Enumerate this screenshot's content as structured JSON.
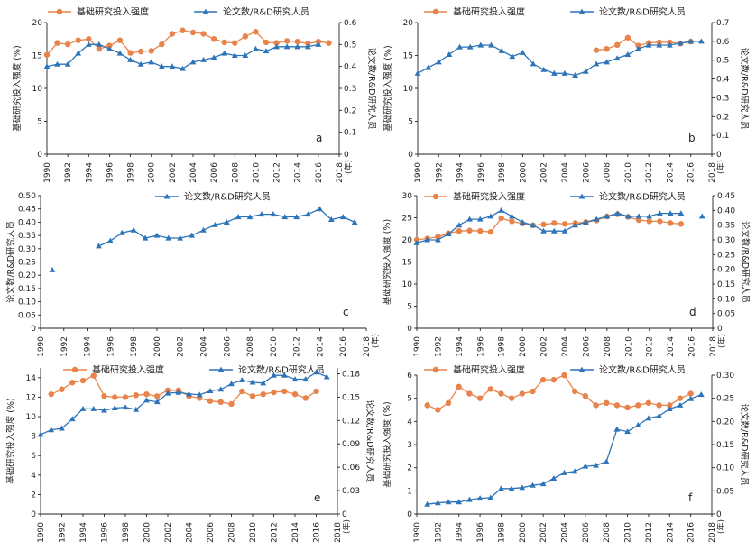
{
  "common": {
    "x_label": "(年)",
    "basic_label": "基础研究投入强度",
    "paper_label": "论文数/R&D研究人员",
    "basic_axis_title": "基础研究投入强度 (%)",
    "paper_axis_title": "论文数/R&D研究人员",
    "colors": {
      "basic": "#E8834A",
      "paper": "#2E74B8"
    },
    "markers": {
      "basic": "circle",
      "paper": "triangle"
    }
  },
  "chart_data": [
    {
      "panel": "a",
      "type": "line",
      "legend": [
        "基础研究投入强度",
        "论文数/R&D研究人员"
      ],
      "x_ticks": [
        1990,
        1992,
        1994,
        1996,
        1998,
        2000,
        2002,
        2004,
        2006,
        2008,
        2010,
        2012,
        2014,
        2016,
        2018
      ],
      "xlim": [
        1990,
        2018
      ],
      "left_axis": {
        "ylim": [
          0,
          20
        ],
        "ticks": [
          "0",
          "5",
          "10",
          "15",
          "20"
        ]
      },
      "right_axis": {
        "ylim": [
          0,
          0.6
        ],
        "ticks": [
          "0",
          "0.1",
          "0.2",
          "0.3",
          "0.4",
          "0.5",
          "0.6"
        ]
      },
      "series": [
        {
          "name": "基础研究投入强度",
          "axis": "left",
          "x": [
            1990,
            1991,
            1992,
            1993,
            1994,
            1995,
            1996,
            1997,
            1998,
            1999,
            2000,
            2001,
            2002,
            2003,
            2004,
            2005,
            2006,
            2007,
            2008,
            2009,
            2010,
            2011,
            2012,
            2013,
            2014,
            2015,
            2016,
            2017
          ],
          "y": [
            15.1,
            16.9,
            16.7,
            17.3,
            17.5,
            16.0,
            16.5,
            17.3,
            15.4,
            15.6,
            15.7,
            16.7,
            18.3,
            18.8,
            18.5,
            18.3,
            17.5,
            17.0,
            16.9,
            17.9,
            18.6,
            17.0,
            16.9,
            17.2,
            17.1,
            16.8,
            17.1,
            16.9
          ]
        },
        {
          "name": "论文数/R&D研究人员",
          "axis": "right",
          "x": [
            1990,
            1991,
            1992,
            1993,
            1994,
            1995,
            1996,
            1997,
            1998,
            1999,
            2000,
            2001,
            2002,
            2003,
            2004,
            2005,
            2006,
            2007,
            2008,
            2009,
            2010,
            2011,
            2012,
            2013,
            2014,
            2015,
            2016
          ],
          "y": [
            0.4,
            0.41,
            0.41,
            0.46,
            0.5,
            0.5,
            0.48,
            0.46,
            0.43,
            0.41,
            0.42,
            0.4,
            0.4,
            0.39,
            0.42,
            0.43,
            0.44,
            0.46,
            0.45,
            0.45,
            0.48,
            0.47,
            0.49,
            0.49,
            0.49,
            0.49,
            0.5
          ]
        }
      ]
    },
    {
      "panel": "b",
      "type": "line",
      "legend": [
        "基础研究投入强度",
        "论文数/R&D研究人员"
      ],
      "x_ticks": [
        1990,
        1992,
        1994,
        1996,
        1998,
        2000,
        2002,
        2004,
        2006,
        2008,
        2010,
        2012,
        2014,
        2016,
        2018
      ],
      "xlim": [
        1990,
        2018
      ],
      "left_axis": {
        "ylim": [
          0,
          20
        ],
        "ticks": [
          "0",
          "5",
          "10",
          "15",
          "20"
        ]
      },
      "right_axis": {
        "ylim": [
          0,
          0.7
        ],
        "ticks": [
          "0",
          "0.1",
          "0.2",
          "0.3",
          "0.4",
          "0.5",
          "0.6",
          "0.7"
        ]
      },
      "series": [
        {
          "name": "基础研究投入强度",
          "axis": "left",
          "x": [
            2007,
            2008,
            2009,
            2010,
            2011,
            2012,
            2013,
            2014,
            2015,
            2016
          ],
          "y": [
            15.8,
            16.0,
            16.6,
            17.7,
            16.5,
            16.9,
            17.0,
            17.0,
            16.8,
            17.1
          ]
        },
        {
          "name": "论文数/R&D研究人员",
          "axis": "right",
          "x": [
            1990,
            1991,
            1992,
            1993,
            1994,
            1995,
            1996,
            1997,
            1998,
            1999,
            2000,
            2001,
            2002,
            2003,
            2004,
            2005,
            2006,
            2007,
            2008,
            2009,
            2010,
            2011,
            2012,
            2013,
            2014,
            2015,
            2016,
            2017
          ],
          "y": [
            0.43,
            0.46,
            0.49,
            0.53,
            0.57,
            0.57,
            0.58,
            0.58,
            0.55,
            0.52,
            0.54,
            0.48,
            0.45,
            0.43,
            0.43,
            0.42,
            0.44,
            0.48,
            0.49,
            0.51,
            0.53,
            0.56,
            0.58,
            0.58,
            0.58,
            0.59,
            0.6,
            0.6
          ]
        }
      ]
    },
    {
      "panel": "c",
      "type": "line",
      "legend": [
        "论文数/R&D研究人员"
      ],
      "x_ticks": [
        1990,
        1992,
        1994,
        1996,
        1998,
        2000,
        2002,
        2004,
        2006,
        2008,
        2010,
        2012,
        2014,
        2016,
        2018
      ],
      "xlim": [
        1990,
        2018
      ],
      "left_axis": {
        "ylim": [
          0,
          0.5
        ],
        "ticks": [
          "0",
          "0.05",
          "0.10",
          "0.15",
          "0.20",
          "0.25",
          "0.30",
          "0.35",
          "0.40",
          "0.45",
          "0.50"
        ]
      },
      "right_axis": null,
      "series": [
        {
          "name": "论文数/R&D研究人员",
          "axis": "left",
          "x": [
            1991,
            1995,
            1996,
            1997,
            1998,
            1999,
            2000,
            2001,
            2002,
            2003,
            2004,
            2005,
            2006,
            2007,
            2008,
            2009,
            2010,
            2011,
            2012,
            2013,
            2014,
            2015,
            2016,
            2017
          ],
          "y": [
            0.22,
            0.31,
            0.33,
            0.36,
            0.37,
            0.34,
            0.35,
            0.34,
            0.34,
            0.35,
            0.37,
            0.39,
            0.4,
            0.42,
            0.42,
            0.43,
            0.43,
            0.42,
            0.42,
            0.43,
            0.45,
            0.41,
            0.42,
            0.4
          ],
          "breaks_after": [
            1991
          ]
        }
      ]
    },
    {
      "panel": "d",
      "type": "line",
      "legend": [
        "基础研究投入强度",
        "论文数/R&D研究人员"
      ],
      "x_ticks": [
        1990,
        1992,
        1994,
        1996,
        1998,
        2000,
        2002,
        2004,
        2006,
        2008,
        2010,
        2012,
        2014,
        2016,
        2018
      ],
      "xlim": [
        1990,
        2018
      ],
      "left_axis": {
        "ylim": [
          0,
          30
        ],
        "ticks": [
          "0",
          "5",
          "10",
          "15",
          "20",
          "25",
          "30"
        ]
      },
      "right_axis": {
        "ylim": [
          0,
          0.45
        ],
        "ticks": [
          "0",
          "0.05",
          "0.10",
          "0.15",
          "0.20",
          "0.25",
          "0.30",
          "0.35",
          "0.40",
          "0.45"
        ]
      },
      "series": [
        {
          "name": "基础研究投入强度",
          "axis": "left",
          "x": [
            1990,
            1991,
            1992,
            1993,
            1994,
            1995,
            1996,
            1997,
            1998,
            1999,
            2000,
            2001,
            2002,
            2003,
            2004,
            2005,
            2006,
            2007,
            2008,
            2009,
            2010,
            2011,
            2012,
            2013,
            2014,
            2015
          ],
          "y": [
            20.0,
            20.3,
            20.7,
            21.5,
            22.0,
            22.1,
            22.0,
            21.8,
            24.9,
            24.2,
            23.7,
            23.3,
            23.5,
            23.8,
            23.6,
            23.8,
            24.0,
            24.4,
            25.3,
            25.8,
            25.2,
            24.5,
            24.2,
            24.2,
            23.8,
            23.6
          ]
        },
        {
          "name": "论文数/R&D研究人员",
          "axis": "right",
          "x": [
            1990,
            1991,
            1992,
            1993,
            1994,
            1995,
            1996,
            1997,
            1998,
            1999,
            2000,
            2001,
            2002,
            2003,
            2004,
            2005,
            2006,
            2007,
            2008,
            2009,
            2010,
            2011,
            2012,
            2013,
            2014,
            2015,
            2017
          ],
          "y": [
            0.29,
            0.3,
            0.3,
            0.32,
            0.35,
            0.37,
            0.37,
            0.38,
            0.4,
            0.38,
            0.36,
            0.35,
            0.33,
            0.33,
            0.33,
            0.35,
            0.36,
            0.37,
            0.38,
            0.39,
            0.38,
            0.38,
            0.38,
            0.39,
            0.39,
            0.39,
            0.38
          ],
          "breaks_after": [
            2015
          ]
        }
      ]
    },
    {
      "panel": "e",
      "type": "line",
      "legend": [
        "基础研究投入强度",
        "论文数/R&D研究人员"
      ],
      "x_ticks": [
        1990,
        1992,
        1994,
        1996,
        1998,
        2000,
        2002,
        2004,
        2006,
        2008,
        2010,
        2012,
        2014,
        2016,
        2018
      ],
      "xlim": [
        1990,
        2018
      ],
      "left_axis": {
        "ylim": [
          0,
          15
        ],
        "ticks": [
          "0",
          "2",
          "4",
          "6",
          "8",
          "10",
          "12",
          "14"
        ]
      },
      "right_axis": {
        "ylim": [
          0,
          0.1875
        ],
        "ticks": [
          "0",
          "0.03",
          "0.06",
          "0.09",
          "0.12",
          "0.15",
          "0.18"
        ]
      },
      "series": [
        {
          "name": "基础研究投入强度",
          "axis": "left",
          "x": [
            1991,
            1992,
            1993,
            1994,
            1995,
            1996,
            1997,
            1998,
            1999,
            2000,
            2001,
            2002,
            2003,
            2004,
            2005,
            2006,
            2007,
            2008,
            2009,
            2010,
            2011,
            2012,
            2013,
            2014,
            2015,
            2016
          ],
          "y": [
            12.3,
            12.8,
            13.5,
            13.7,
            14.2,
            12.1,
            12.0,
            12.0,
            12.2,
            12.3,
            12.1,
            12.7,
            12.7,
            12.1,
            11.9,
            11.6,
            11.5,
            11.3,
            12.6,
            12.1,
            12.3,
            12.5,
            12.6,
            12.3,
            11.9,
            12.6
          ]
        },
        {
          "name": "论文数/R&D研究人员",
          "axis": "right",
          "x": [
            1990,
            1991,
            1992,
            1993,
            1994,
            1995,
            1996,
            1997,
            1998,
            1999,
            2000,
            2001,
            2002,
            2003,
            2004,
            2005,
            2006,
            2007,
            2008,
            2009,
            2010,
            2011,
            2012,
            2013,
            2014,
            2015,
            2016,
            2017
          ],
          "y": [
            0.102,
            0.108,
            0.11,
            0.122,
            0.135,
            0.135,
            0.133,
            0.136,
            0.137,
            0.134,
            0.146,
            0.144,
            0.155,
            0.156,
            0.154,
            0.153,
            0.158,
            0.16,
            0.167,
            0.172,
            0.169,
            0.168,
            0.178,
            0.178,
            0.173,
            0.173,
            0.182,
            0.176
          ]
        }
      ]
    },
    {
      "panel": "f",
      "type": "line",
      "legend": [
        "基础研究投入强度",
        "论文数/R&D研究人员"
      ],
      "x_ticks": [
        1990,
        1992,
        1994,
        1996,
        1998,
        2000,
        2002,
        2004,
        2006,
        2008,
        2010,
        2012,
        2014,
        2016,
        2018
      ],
      "xlim": [
        1990,
        2018
      ],
      "left_axis": {
        "ylim": [
          0,
          6
        ],
        "ticks": [
          "0",
          "1",
          "2",
          "3",
          "4",
          "5",
          "6"
        ]
      },
      "right_axis": {
        "ylim": [
          0,
          0.3
        ],
        "ticks": [
          "0",
          "0.05",
          "0.10",
          "0.15",
          "0.20",
          "0.25",
          "0.30"
        ]
      },
      "series": [
        {
          "name": "基础研究投入强度",
          "axis": "left",
          "x": [
            1991,
            1992,
            1993,
            1994,
            1995,
            1996,
            1997,
            1998,
            1999,
            2000,
            2001,
            2002,
            2003,
            2004,
            2005,
            2006,
            2007,
            2008,
            2009,
            2010,
            2011,
            2012,
            2013,
            2014,
            2015,
            2016
          ],
          "y": [
            4.7,
            4.5,
            4.8,
            5.5,
            5.2,
            5.0,
            5.4,
            5.2,
            5.0,
            5.2,
            5.3,
            5.8,
            5.8,
            6.0,
            5.3,
            5.1,
            4.7,
            4.8,
            4.7,
            4.6,
            4.7,
            4.8,
            4.7,
            4.7,
            5.0,
            5.2
          ]
        },
        {
          "name": "论文数/R&D研究人员",
          "axis": "right",
          "x": [
            1991,
            1992,
            1993,
            1994,
            1995,
            1996,
            1997,
            1998,
            1999,
            2000,
            2001,
            2002,
            2003,
            2004,
            2005,
            2006,
            2007,
            2008,
            2009,
            2010,
            2011,
            2012,
            2013,
            2014,
            2015,
            2016,
            2017
          ],
          "y": [
            0.021,
            0.024,
            0.026,
            0.026,
            0.031,
            0.034,
            0.035,
            0.055,
            0.055,
            0.057,
            0.062,
            0.065,
            0.077,
            0.089,
            0.092,
            0.103,
            0.105,
            0.113,
            0.183,
            0.178,
            0.192,
            0.207,
            0.212,
            0.227,
            0.235,
            0.249,
            0.258
          ]
        }
      ]
    }
  ]
}
